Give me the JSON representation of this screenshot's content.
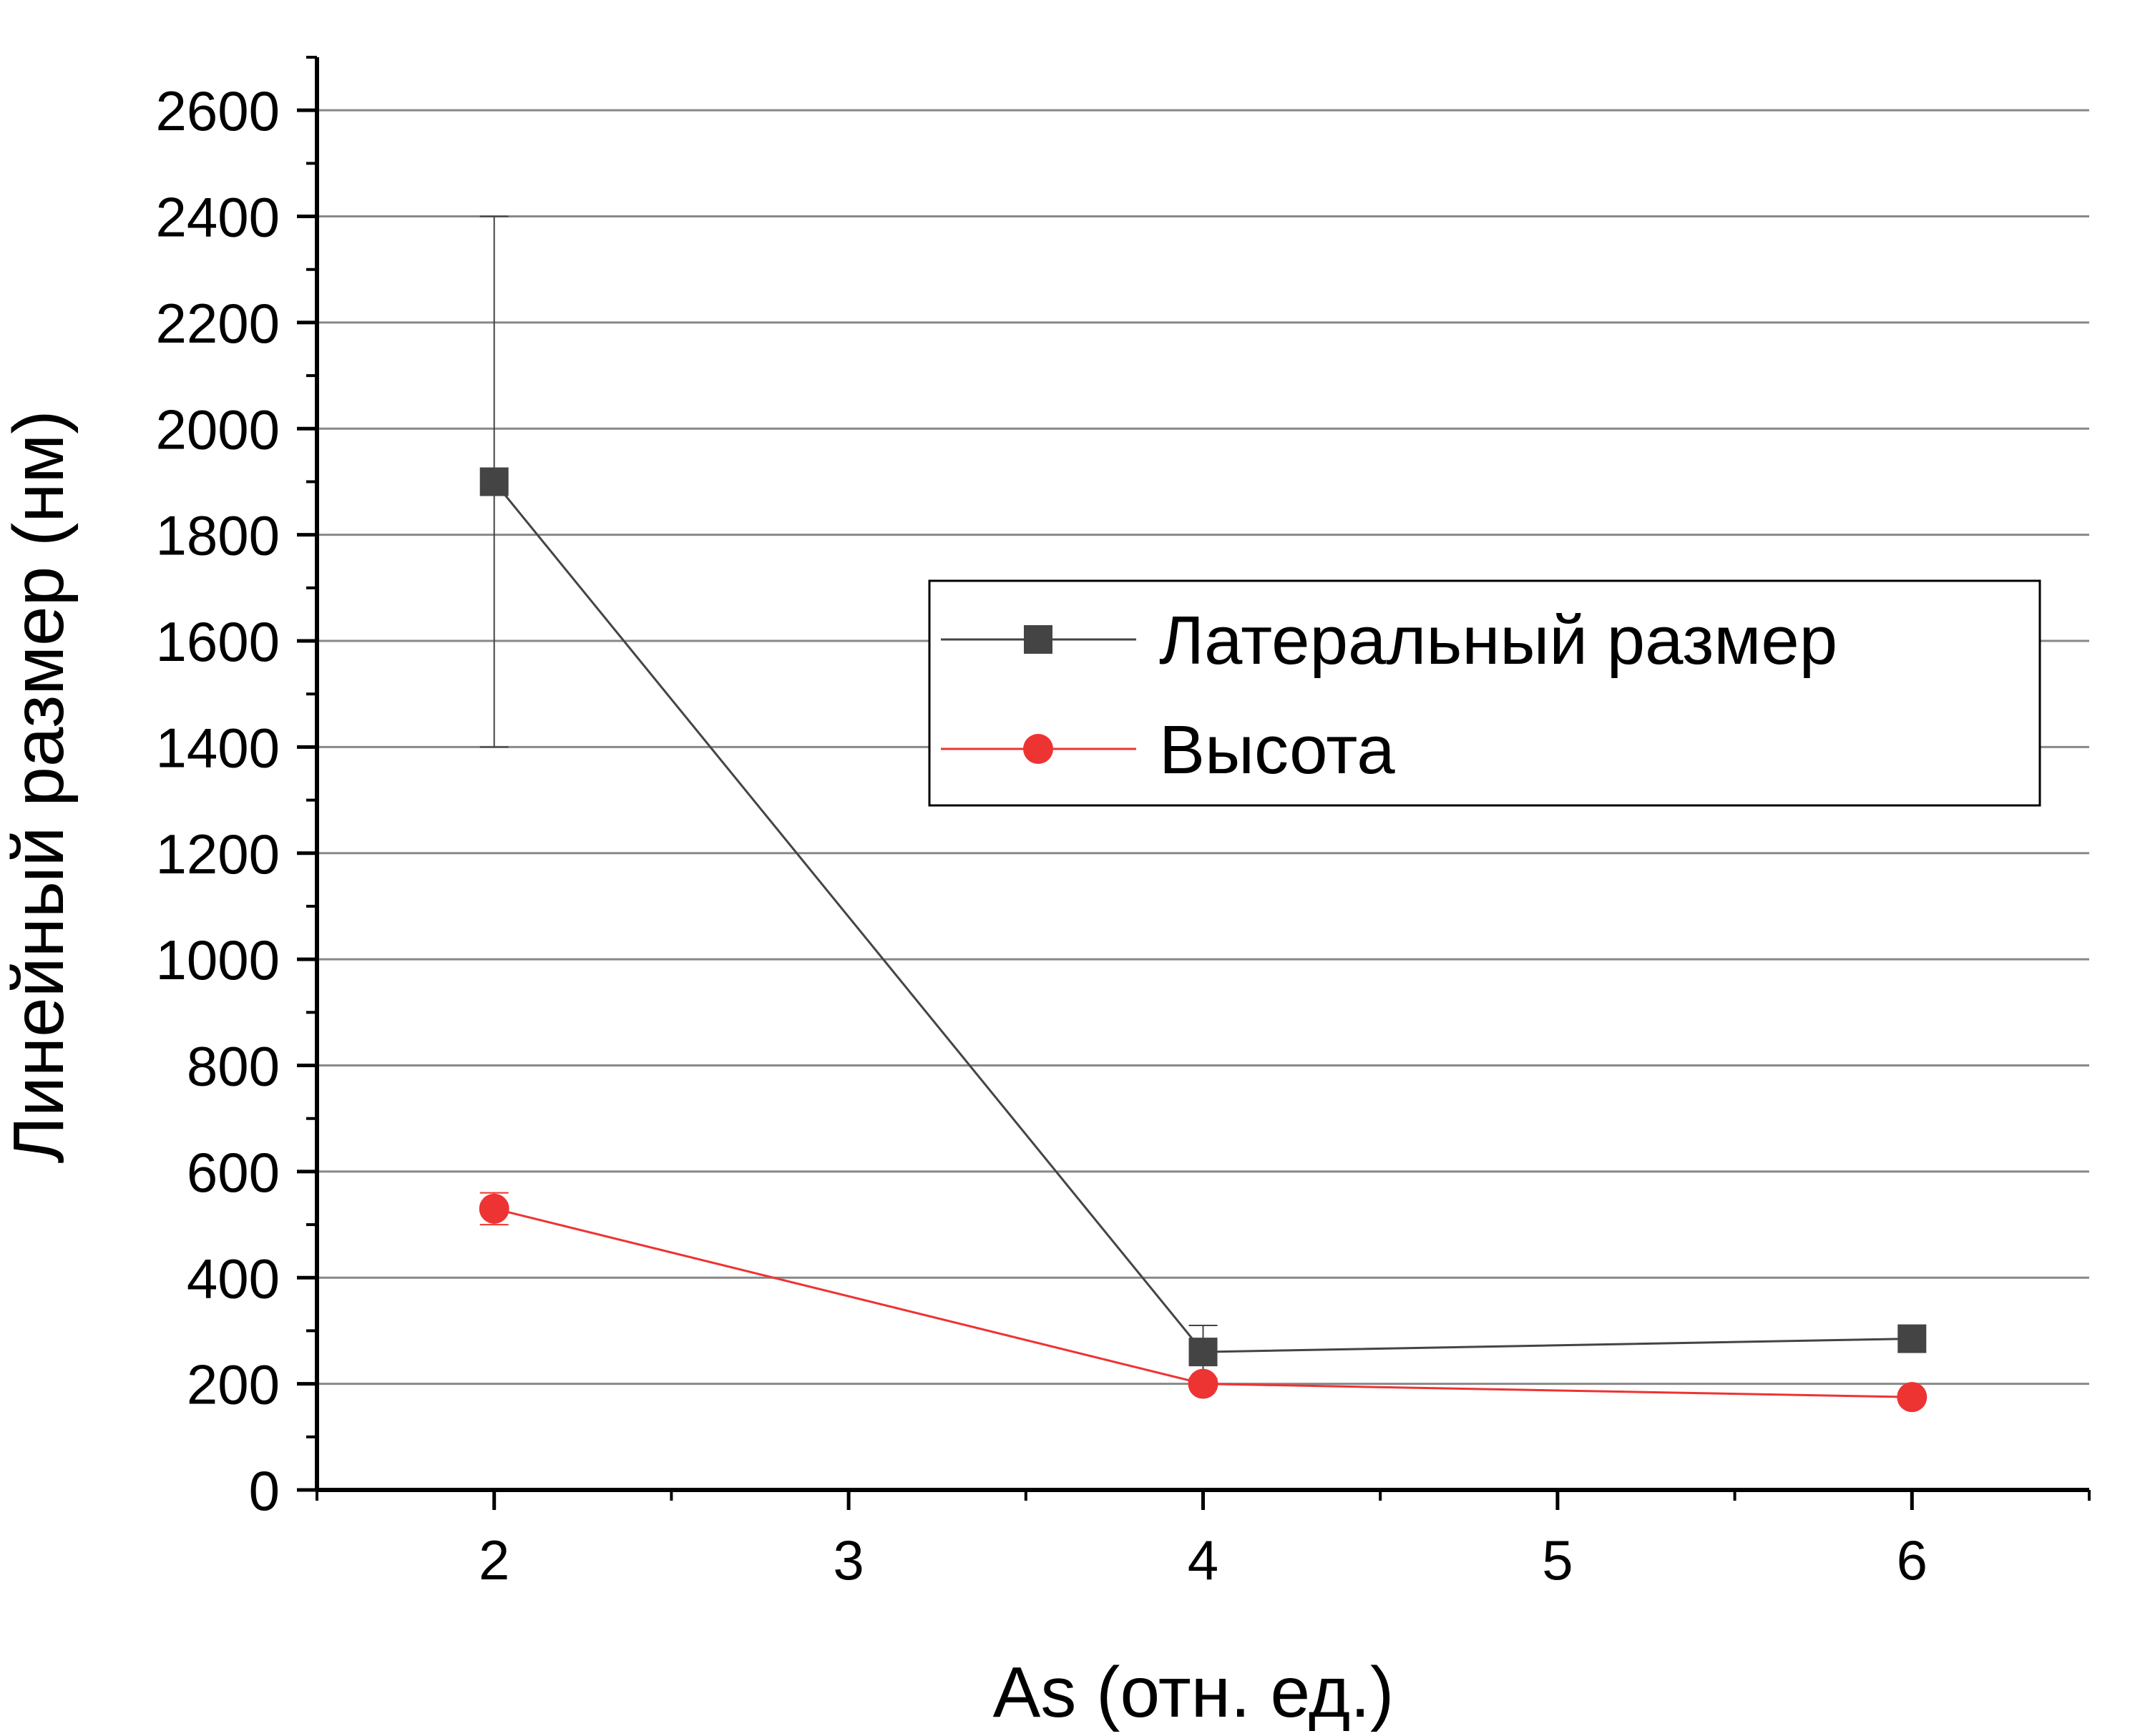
{
  "chart_data": {
    "type": "line",
    "xlabel": "As (отн. ед.)",
    "ylabel": "Линейный размер (нм)",
    "xlim": [
      1.5,
      6.5
    ],
    "ylim": [
      0,
      2700
    ],
    "x_ticks": [
      2,
      3,
      4,
      5,
      6
    ],
    "y_ticks": [
      0,
      200,
      400,
      600,
      800,
      1000,
      1200,
      1400,
      1600,
      1800,
      2000,
      2200,
      2400,
      2600
    ],
    "grid": "horizontal",
    "legend_position": "center-right",
    "series": [
      {
        "name": "Латеральный размер",
        "marker": "square",
        "color": "#444444",
        "x": [
          2,
          4,
          6
        ],
        "y": [
          1900,
          260,
          285
        ],
        "error": [
          500,
          50,
          0
        ]
      },
      {
        "name": "Высота",
        "marker": "circle",
        "color": "#ee3333",
        "x": [
          2,
          4,
          6
        ],
        "y": [
          530,
          200,
          175
        ],
        "error": [
          30,
          0,
          0
        ]
      }
    ]
  }
}
